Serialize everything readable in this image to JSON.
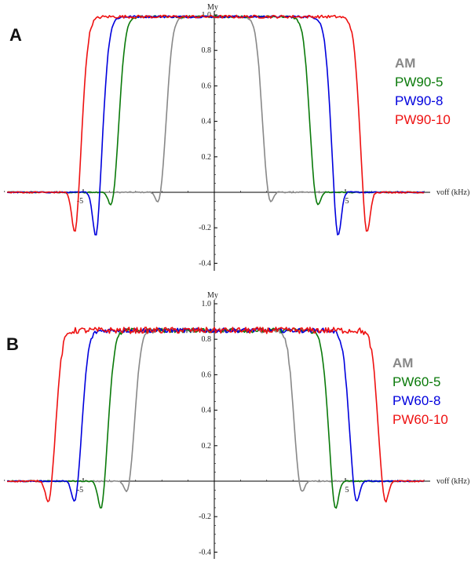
{
  "chart_data": [
    {
      "panel_label": "A",
      "type": "line",
      "ylabel": "My",
      "xlabel": "voff (kHz)",
      "xlim": [
        -8,
        8.5
      ],
      "ylim": [
        -0.45,
        1.0
      ],
      "x_ticks": [
        -5,
        5
      ],
      "y_ticks": [
        -0.4,
        -0.2,
        0.2,
        0.4,
        0.6,
        0.8,
        1.0
      ],
      "plateau": 0.99,
      "series": [
        {
          "name": "AM",
          "color": "#888888",
          "left_edge": -1.8,
          "right_edge": 1.8,
          "undershoot": -0.1
        },
        {
          "name": "PW90-5",
          "color": "#0a7a0a",
          "left_edge": -3.6,
          "right_edge": 3.6,
          "undershoot": -0.12
        },
        {
          "name": "PW90-8",
          "color": "#0000dd",
          "left_edge": -4.2,
          "right_edge": 4.4,
          "undershoot": -0.3
        },
        {
          "name": "PW90-10",
          "color": "#ee1111",
          "left_edge": -5.0,
          "right_edge": 5.5,
          "undershoot": -0.28
        }
      ]
    },
    {
      "panel_label": "B",
      "type": "line",
      "ylabel": "My",
      "xlabel": "voff (kHz)",
      "xlim": [
        -8,
        8.5
      ],
      "ylim": [
        -0.45,
        1.0
      ],
      "x_ticks": [
        -5,
        5
      ],
      "y_ticks": [
        -0.4,
        -0.2,
        0.2,
        0.4,
        0.6,
        0.8,
        1.0
      ],
      "plateau": 0.85,
      "series": [
        {
          "name": "AM",
          "color": "#888888",
          "left_edge": -3.0,
          "right_edge": 3.0,
          "undershoot": -0.1
        },
        {
          "name": "PW60-5",
          "color": "#0a7a0a",
          "left_edge": -4.0,
          "right_edge": 4.3,
          "undershoot": -0.2
        },
        {
          "name": "PW60-8",
          "color": "#0000dd",
          "left_edge": -5.0,
          "right_edge": 5.1,
          "undershoot": -0.16
        },
        {
          "name": "PW60-10",
          "color": "#ee1111",
          "left_edge": -6.0,
          "right_edge": 6.2,
          "undershoot": -0.16
        }
      ]
    }
  ]
}
